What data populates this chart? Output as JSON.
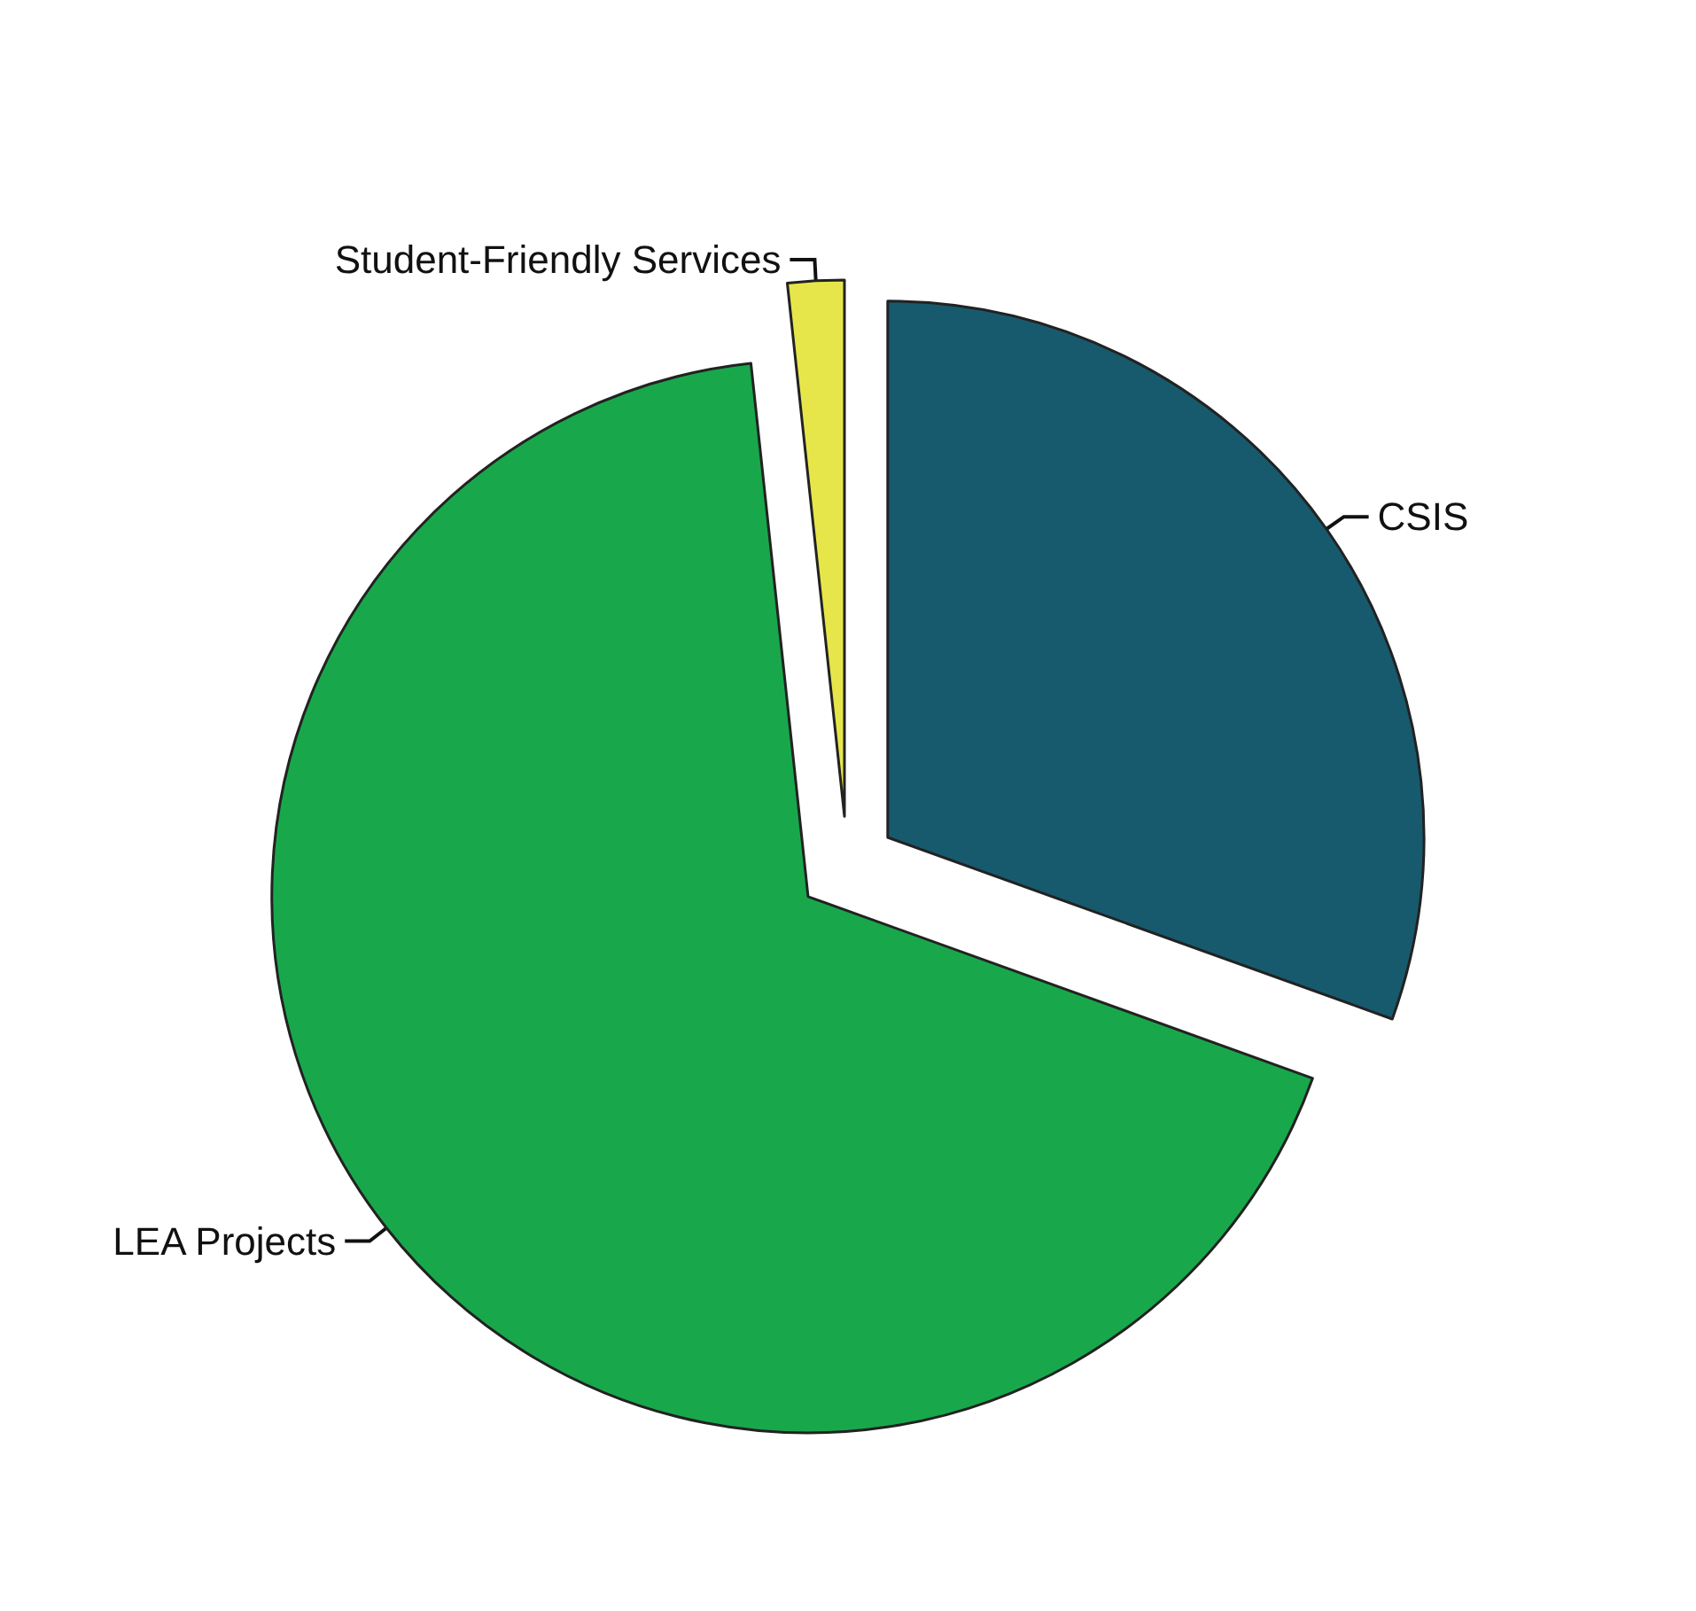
{
  "chart_data": {
    "type": "pie",
    "categories": [
      "CSIS",
      "LEA Projects",
      "Student-Friendly Services"
    ],
    "values": [
      30.5,
      67.8,
      1.7
    ],
    "colors": [
      "#175a6e",
      "#18a84b",
      "#e6e64a"
    ],
    "legend": false
  }
}
